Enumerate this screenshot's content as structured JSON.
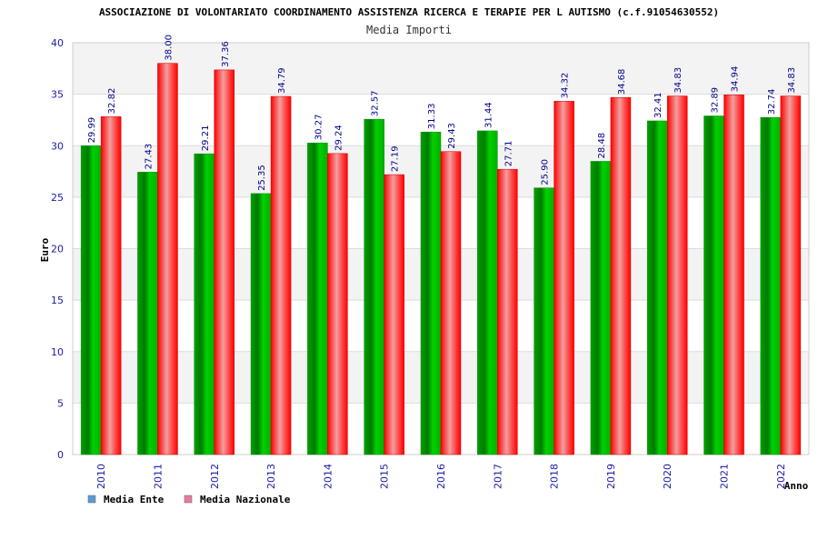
{
  "chart_data": {
    "type": "bar",
    "title": "ASSOCIAZIONE DI VOLONTARIATO COORDINAMENTO ASSISTENZA RICERCA E TERAPIE PER L AUTISMO (c.f.91054630552)",
    "subtitle": "Media Importi",
    "xlabel": "Anno",
    "ylabel": "Euro",
    "ylim": [
      0,
      40
    ],
    "yticks": [
      0,
      5,
      10,
      15,
      20,
      25,
      30,
      35,
      40
    ],
    "categories": [
      "2010",
      "2011",
      "2012",
      "2013",
      "2014",
      "2015",
      "2016",
      "2017",
      "2018",
      "2019",
      "2020",
      "2021",
      "2022"
    ],
    "series": [
      {
        "name": "Media Ente",
        "color": "#00c000",
        "legend_color": "#5b9bd5",
        "values": [
          29.99,
          27.43,
          29.21,
          25.35,
          30.27,
          32.57,
          31.33,
          31.44,
          25.9,
          28.48,
          32.41,
          32.89,
          32.74
        ],
        "labels": [
          "29.99",
          "27.43",
          "29.21",
          "25.35",
          "30.27",
          "32.57",
          "31.33",
          "31.44",
          "25.90",
          "28.48",
          "32.41",
          "32.89",
          "32.74"
        ]
      },
      {
        "name": "Media Nazionale",
        "color": "#ff0000",
        "legend_color": "#e87aa0",
        "values": [
          32.82,
          38.0,
          37.36,
          34.79,
          29.24,
          27.19,
          29.43,
          27.71,
          34.32,
          34.68,
          34.83,
          34.94,
          34.83
        ],
        "labels": [
          "32.82",
          "38.00",
          "37.36",
          "34.79",
          "29.24",
          "27.19",
          "29.43",
          "27.71",
          "34.32",
          "34.68",
          "34.83",
          "34.94",
          "34.83"
        ]
      }
    ],
    "grid": true,
    "legend_position": "bottom-left"
  }
}
